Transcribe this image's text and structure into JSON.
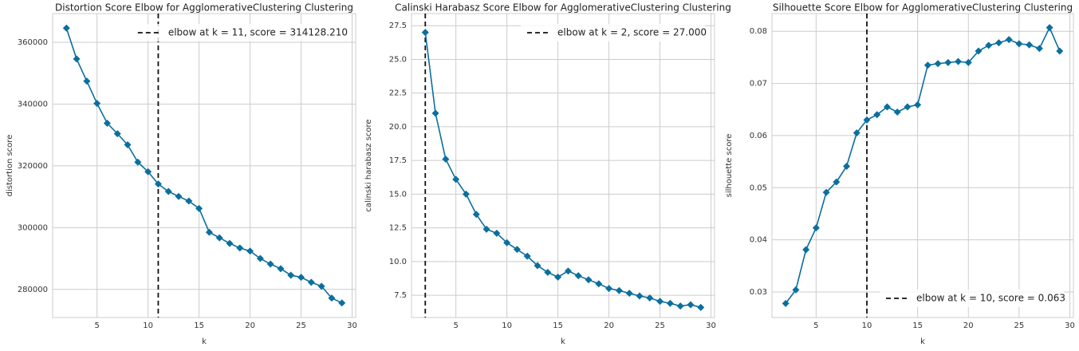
{
  "chart_data": [
    {
      "type": "line",
      "title": "Distortion Score Elbow for AgglomerativeClustering Clustering",
      "x_label": "k",
      "y_label": "distortion score",
      "color": "#0b6f9e",
      "x": [
        2,
        3,
        4,
        5,
        6,
        7,
        8,
        9,
        10,
        11,
        12,
        13,
        14,
        15,
        16,
        17,
        18,
        19,
        20,
        21,
        22,
        23,
        24,
        25,
        26,
        27,
        28,
        29
      ],
      "values": [
        364600,
        354600,
        347400,
        340200,
        333800,
        330400,
        326800,
        321200,
        318100,
        314128.21,
        311700,
        310100,
        308600,
        306200,
        298500,
        296700,
        294900,
        293400,
        292400,
        290000,
        288200,
        286700,
        284600,
        283900,
        282300,
        281000,
        277200,
        275600
      ],
      "xlim": [
        0.65,
        30.35
      ],
      "xticks": [
        5,
        10,
        15,
        20,
        25,
        30
      ],
      "ylim": [
        270900,
        369300
      ],
      "yticks": [
        280000,
        300000,
        320000,
        340000,
        360000
      ],
      "grid": true,
      "legend": "upper right",
      "elbow": {
        "x": 11,
        "label": "elbow at k = 11, score = 314128.210"
      }
    },
    {
      "type": "line",
      "title": "Calinski Harabasz Score Elbow for AgglomerativeClustering Clustering",
      "x_label": "k",
      "y_label": "calinski harabasz score",
      "color": "#0b6f9e",
      "x": [
        2,
        3,
        4,
        5,
        6,
        7,
        8,
        9,
        10,
        11,
        12,
        13,
        14,
        15,
        16,
        17,
        18,
        19,
        20,
        21,
        22,
        23,
        24,
        25,
        26,
        27,
        28,
        29
      ],
      "values": [
        27.0,
        21.0,
        17.6,
        16.1,
        15.0,
        13.5,
        12.4,
        12.1,
        11.4,
        10.9,
        10.4,
        9.7,
        9.2,
        8.85,
        9.3,
        8.95,
        8.65,
        8.35,
        8.0,
        7.85,
        7.65,
        7.45,
        7.3,
        7.05,
        6.9,
        6.7,
        6.8,
        6.6
      ],
      "xlim": [
        0.65,
        30.35
      ],
      "xticks": [
        5,
        10,
        15,
        20,
        25,
        30
      ],
      "ylim": [
        5.85,
        28.4
      ],
      "yticks": [
        7.5,
        {
          "value": 10,
          "label": "10.0"
        },
        12.5,
        {
          "value": 15,
          "label": "15.0"
        },
        17.5,
        {
          "value": 20,
          "label": "20.0"
        },
        22.5,
        {
          "value": 25,
          "label": "25.0"
        },
        27.5
      ],
      "grid": true,
      "legend": "upper right",
      "elbow": {
        "x": 2,
        "label": "elbow at k = 2, score = 27.000"
      }
    },
    {
      "type": "line",
      "title": "Silhouette Score Elbow for AgglomerativeClustering Clustering",
      "x_label": "k",
      "y_label": "silhouette score",
      "color": "#0b6f9e",
      "x": [
        2,
        3,
        4,
        5,
        6,
        7,
        8,
        9,
        10,
        11,
        12,
        13,
        14,
        15,
        16,
        17,
        18,
        19,
        20,
        21,
        22,
        23,
        24,
        25,
        26,
        27,
        28,
        29
      ],
      "values": [
        0.0278,
        0.0304,
        0.0381,
        0.0423,
        0.0491,
        0.0511,
        0.0541,
        0.0605,
        0.063,
        0.064,
        0.0655,
        0.0645,
        0.0655,
        0.0659,
        0.0735,
        0.0738,
        0.074,
        0.0742,
        0.074,
        0.0762,
        0.0773,
        0.0778,
        0.0784,
        0.0776,
        0.0774,
        0.0767,
        0.0807,
        0.0762
      ],
      "xlim": [
        0.65,
        30.35
      ],
      "xticks": [
        5,
        10,
        15,
        20,
        25,
        30
      ],
      "ylim": [
        0.0251,
        0.0834
      ],
      "yticks": [
        0.03,
        0.04,
        0.05,
        0.06,
        0.07,
        0.08
      ],
      "grid": true,
      "legend": "lower right",
      "elbow": {
        "x": 10,
        "label": "elbow at k = 10, score = 0.063"
      }
    }
  ]
}
